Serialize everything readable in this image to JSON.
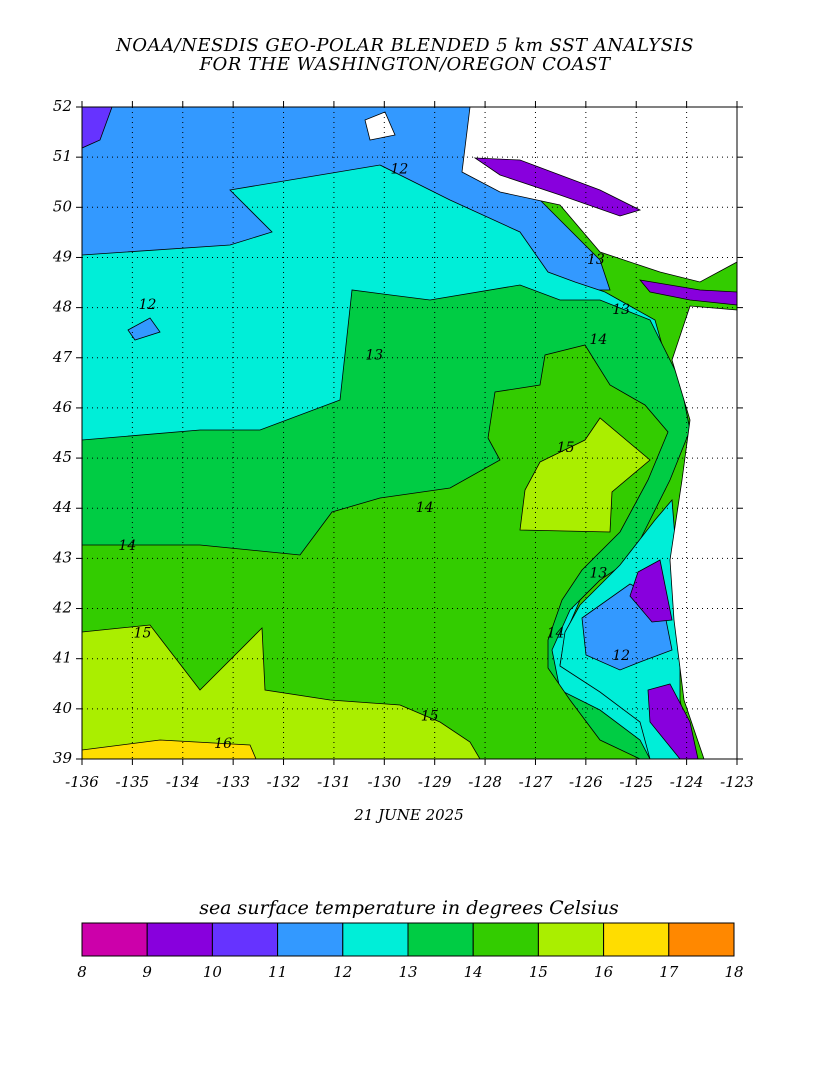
{
  "title": [
    "NOAA/NESDIS GEO-POLAR BLENDED 5 km SST ANALYSIS",
    "FOR THE WASHINGTON/OREGON COAST"
  ],
  "map": {
    "lon_range": [
      -136,
      -123
    ],
    "lat_range": [
      39,
      52
    ],
    "longitudes": [
      -136,
      -135,
      -134,
      -133,
      -132,
      -131,
      -130,
      -129,
      -128,
      -127,
      -126,
      -125,
      -124,
      -123
    ],
    "latitudes": [
      39,
      40,
      41,
      42,
      43,
      44,
      45,
      46,
      47,
      48,
      49,
      50,
      51,
      52
    ],
    "date": "21 JUNE 2025",
    "contour_labels": [
      {
        "text": "12",
        "lon": -129.7,
        "lat": 50.75
      },
      {
        "text": "12",
        "lon": -134.7,
        "lat": 48.05
      },
      {
        "text": "13",
        "lon": -130.2,
        "lat": 47.05
      },
      {
        "text": "13",
        "lon": -125.8,
        "lat": 48.95
      },
      {
        "text": "13",
        "lon": -125.3,
        "lat": 47.95
      },
      {
        "text": "14",
        "lon": -125.75,
        "lat": 47.35
      },
      {
        "text": "15",
        "lon": -126.4,
        "lat": 45.2
      },
      {
        "text": "14",
        "lon": -129.2,
        "lat": 44.0
      },
      {
        "text": "14",
        "lon": -135.1,
        "lat": 43.25
      },
      {
        "text": "13",
        "lon": -125.75,
        "lat": 42.7
      },
      {
        "text": "15",
        "lon": -134.8,
        "lat": 41.5
      },
      {
        "text": "14",
        "lon": -126.6,
        "lat": 41.5
      },
      {
        "text": "12",
        "lon": -125.3,
        "lat": 41.05
      },
      {
        "text": "15",
        "lon": -129.1,
        "lat": 39.85
      },
      {
        "text": "16",
        "lon": -133.2,
        "lat": 39.3
      }
    ]
  },
  "colorbar": {
    "title": "sea surface temperature in degrees Celsius",
    "ticks": [
      8,
      9,
      10,
      11,
      12,
      13,
      14,
      15,
      16,
      17,
      18
    ],
    "colors": [
      "#cc00aa",
      "#8800dd",
      "#6633ff",
      "#3399ff",
      "#00eed8",
      "#00cc44",
      "#33cc00",
      "#aaee00",
      "#ffdd00",
      "#ff8800"
    ]
  }
}
